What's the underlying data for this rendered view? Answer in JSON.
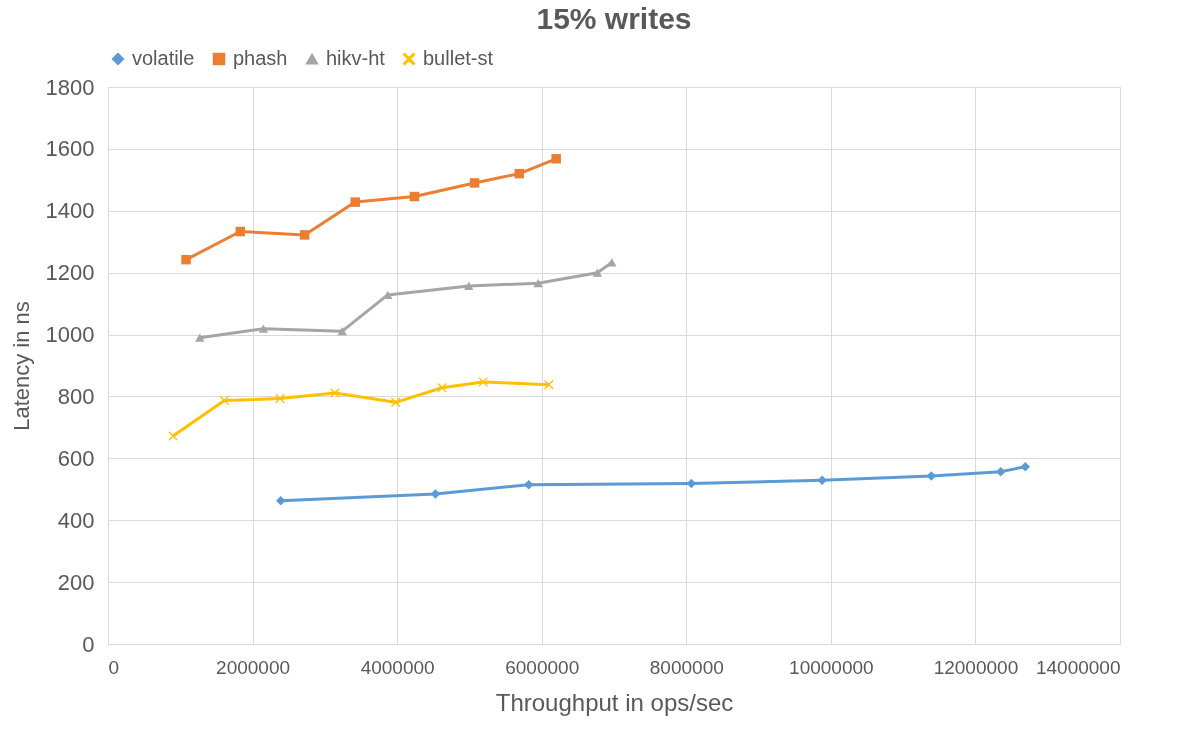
{
  "chart_data": {
    "type": "line",
    "title": "15% writes",
    "xlabel": "Throughput in ops/sec",
    "ylabel": "Latency in ns",
    "xlim": [
      0,
      14000000
    ],
    "xticks": [
      0,
      2000000,
      4000000,
      6000000,
      8000000,
      10000000,
      12000000,
      14000000
    ],
    "ylim": [
      0,
      1800
    ],
    "yticks": [
      0,
      200,
      400,
      600,
      800,
      1000,
      1200,
      1400,
      1600,
      1800
    ],
    "grid": true,
    "legend": "top",
    "series": [
      {
        "name": "volatile",
        "color": "#5b9bd5",
        "marker": "diamond",
        "x": [
          2390000,
          4530000,
          5820000,
          8070000,
          9880000,
          11390000,
          12350000,
          12690000
        ],
        "values": [
          463,
          485,
          515,
          519,
          529,
          543,
          557,
          573
        ]
      },
      {
        "name": "phash",
        "color": "#ed7d31",
        "marker": "square",
        "x": [
          1080000,
          1830000,
          2720000,
          3420000,
          4240000,
          5070000,
          5690000,
          6200000
        ],
        "values": [
          1242,
          1333,
          1322,
          1428,
          1446,
          1490,
          1520,
          1568
        ]
      },
      {
        "name": "hikv-ht",
        "color": "#a5a5a5",
        "marker": "triangle",
        "x": [
          1270000,
          2150000,
          3240000,
          3870000,
          4990000,
          5950000,
          6770000,
          6970000
        ],
        "values": [
          990,
          1019,
          1011,
          1128,
          1157,
          1166,
          1200,
          1233
        ]
      },
      {
        "name": "bullet-st",
        "color": "#ffc000",
        "marker": "cross",
        "x": [
          900000,
          1610000,
          2380000,
          3140000,
          3980000,
          4620000,
          5190000,
          6100000
        ],
        "values": [
          672,
          787,
          793,
          811,
          781,
          828,
          847,
          838
        ]
      }
    ]
  }
}
